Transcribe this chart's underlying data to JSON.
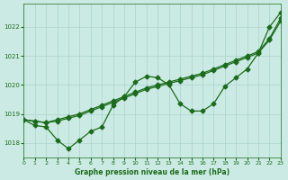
{
  "background_color": "#cceae4",
  "grid_color": "#aad4cc",
  "line_color": "#1a6b1a",
  "text_color": "#1a6b1a",
  "xlabel": "Graphe pression niveau de la mer (hPa)",
  "ylim": [
    1017.5,
    1022.8
  ],
  "xlim": [
    0,
    23
  ],
  "yticks": [
    1018,
    1019,
    1020,
    1021,
    1022
  ],
  "xticks": [
    0,
    1,
    2,
    3,
    4,
    5,
    6,
    7,
    8,
    9,
    10,
    11,
    12,
    13,
    14,
    15,
    16,
    17,
    18,
    19,
    20,
    21,
    22,
    23
  ],
  "series_linear1": [
    1018.8,
    1018.75,
    1018.7,
    1018.8,
    1018.9,
    1019.0,
    1019.15,
    1019.3,
    1019.45,
    1019.6,
    1019.75,
    1019.9,
    1020.0,
    1020.1,
    1020.2,
    1020.3,
    1020.4,
    1020.55,
    1020.7,
    1020.85,
    1021.0,
    1021.15,
    1021.6,
    1022.3
  ],
  "series_linear2": [
    1018.8,
    1018.75,
    1018.7,
    1018.75,
    1018.85,
    1018.95,
    1019.1,
    1019.25,
    1019.4,
    1019.55,
    1019.7,
    1019.85,
    1019.95,
    1020.05,
    1020.15,
    1020.25,
    1020.35,
    1020.5,
    1020.65,
    1020.8,
    1020.95,
    1021.1,
    1021.55,
    1022.2
  ],
  "series_wiggly": [
    1018.8,
    1018.6,
    1018.55,
    1018.1,
    1017.8,
    1018.1,
    1018.4,
    1018.55,
    1019.3,
    1019.6,
    1020.1,
    1020.3,
    1020.25,
    1020.0,
    1019.35,
    1019.1,
    1019.1,
    1019.35,
    1019.95,
    1020.25,
    1020.55,
    1021.1,
    1022.0,
    1022.5
  ],
  "marker": "D",
  "markersize": 2.5,
  "linewidth": 0.9
}
